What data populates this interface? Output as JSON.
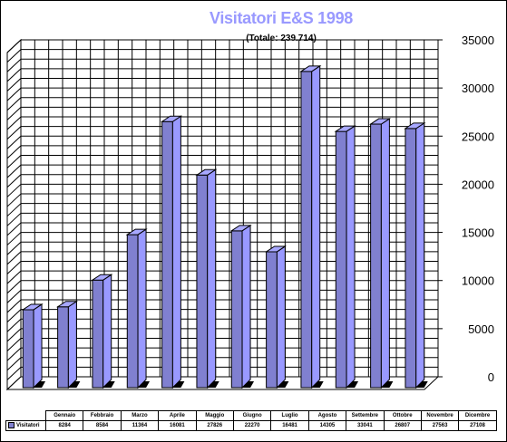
{
  "title": "Visitatori E&S 1998",
  "subtitle": "(Totale: 239.714)",
  "colors": {
    "title": "#9999ff",
    "bar_front": "#8080d0",
    "bar_side": "#9999ff",
    "bar_top": "#a8a8ff",
    "grid": "#000000",
    "wall": "#ffffff"
  },
  "chart_data": {
    "type": "bar",
    "title": "Visitatori E&S 1998",
    "subtitle": "(Totale: 239.714)",
    "categories": [
      "Gennaio",
      "Febbraio",
      "Marzo",
      "Aprile",
      "Maggio",
      "Giugno",
      "Luglio",
      "Agosto",
      "Settembre",
      "Ottobre",
      "Novembre",
      "Dicembre"
    ],
    "series": [
      {
        "name": "Visitatori",
        "values": [
          8284,
          8584,
          11364,
          16081,
          27826,
          22270,
          16481,
          14305,
          33041,
          26807,
          27563,
          27108
        ]
      }
    ],
    "y_ticks": [
      "0",
      "5000",
      "10000",
      "15000",
      "20000",
      "25000",
      "30000",
      "35000"
    ],
    "ylim": [
      0,
      35000
    ],
    "grid": true,
    "legend": "data-table-bottom"
  },
  "table": {
    "series_label": "Visitatori",
    "values": [
      "8284",
      "8584",
      "11364",
      "16081",
      "27826",
      "22270",
      "16481",
      "14305",
      "33041",
      "26807",
      "27563",
      "27108"
    ]
  }
}
